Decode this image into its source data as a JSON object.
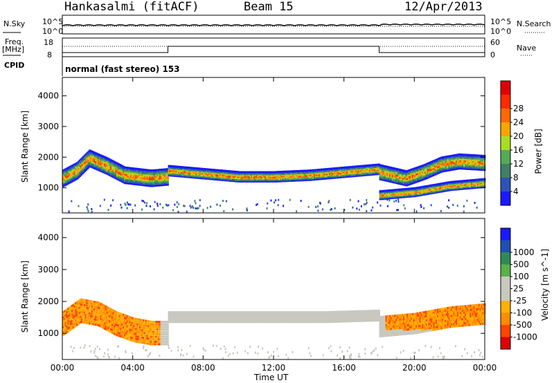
{
  "header": {
    "station": "Hankasalmi (fitACF)",
    "beam": "Beam 15",
    "date": "12/Apr/2013"
  },
  "nsky_panel": {
    "left_label": "N.Sky",
    "right_label": "N.Search",
    "right_line_style": "dotted",
    "left_ticks": [
      "10^5",
      "10^0"
    ],
    "right_ticks": [
      "10^5",
      "10^0"
    ]
  },
  "freq_panel": {
    "left_label_line1": "Freq.",
    "left_label_line2": "[MHz]",
    "right_label": "Nave",
    "right_line_style": "dotted",
    "left_ticks": [
      "18",
      "8"
    ],
    "right_ticks": [
      "60",
      "0"
    ]
  },
  "cpid_panel": {
    "left_label": "CPID",
    "text": "normal (fast stereo) 153"
  },
  "x_axis": {
    "label": "Time UT",
    "ticks": [
      "00:00",
      "04:00",
      "08:00",
      "12:00",
      "16:00",
      "20:00",
      "00:00"
    ]
  },
  "colors": {
    "power_scale": [
      "#1a1aff",
      "#2a55b8",
      "#3f7f6a",
      "#55aa55",
      "#aadd22",
      "#ffa500",
      "#ff6a00",
      "#ff2a00",
      "#e00000"
    ],
    "velocity_scale": [
      "#e00000",
      "#ff4500",
      "#ff8c00",
      "#ffb000",
      "#c8c8c0",
      "#c8c8c0",
      "#5ab04a",
      "#2e8b57",
      "#2050b0",
      "#1a1aff"
    ],
    "ground_scatter": "#c8c8c0"
  },
  "chart_data": [
    {
      "type": "heatmap",
      "name": "power",
      "ylabel": "Slant Range [km]",
      "xlabel": "",
      "yticks": [
        1000,
        2000,
        3000,
        4000
      ],
      "ylim": [
        180,
        4600
      ],
      "xlim_hours": [
        0,
        24
      ],
      "colorbar": {
        "label": "Power [dB]",
        "ticks": [
          4,
          8,
          12,
          16,
          20,
          24,
          28
        ],
        "range": [
          0,
          30
        ]
      },
      "echo_bands": [
        {
          "t": [
            0.0,
            0.8,
            1.5,
            2.5,
            3.5,
            5.0,
            6.0
          ],
          "r": [
            1300,
            1550,
            1950,
            1700,
            1400,
            1300,
            1350
          ],
          "width_km": 500
        },
        {
          "t": [
            6.0,
            8.0,
            10.0,
            12.0,
            14.0,
            16.0,
            18.0
          ],
          "r": [
            1550,
            1450,
            1350,
            1350,
            1400,
            1500,
            1600
          ],
          "width_km": 300
        },
        {
          "t": [
            18.0,
            19.0,
            20.0,
            21.0,
            22.0,
            23.0,
            24.0
          ],
          "r": [
            750,
            800,
            850,
            950,
            1050,
            1100,
            1150
          ],
          "width_km": 250
        },
        {
          "t": [
            18.0,
            19.5,
            20.5,
            21.5,
            22.5,
            24.0
          ],
          "r": [
            1500,
            1300,
            1500,
            1750,
            1850,
            1800
          ],
          "width_km": 450
        }
      ]
    },
    {
      "type": "heatmap",
      "name": "velocity",
      "ylabel": "Slant Range [km]",
      "xlabel": "Time UT",
      "yticks": [
        1000,
        2000,
        3000,
        4000
      ],
      "ylim": [
        180,
        4600
      ],
      "xlim_hours": [
        0,
        24
      ],
      "colorbar": {
        "label": "Velocity [m s^-1]",
        "ticks": [
          -1000,
          -500,
          -100,
          -25,
          25,
          100,
          500,
          1000
        ],
        "tick_labels": [
          "-1000",
          "-500",
          "-100",
          "-25",
          "25",
          "100",
          "500",
          "1000"
        ]
      },
      "echo_bands": [
        {
          "t": [
            0.0,
            1.0,
            2.0,
            3.0,
            4.0,
            5.0,
            6.0
          ],
          "r": [
            1300,
            1700,
            1600,
            1300,
            1100,
            1000,
            1000
          ],
          "width_km": 700
        },
        {
          "t": [
            6.0,
            9.0,
            12.0,
            15.0,
            18.0
          ],
          "r": [
            1500,
            1500,
            1500,
            1500,
            1550
          ],
          "width_km": 300
        },
        {
          "t": [
            18.0,
            20.0,
            22.0,
            24.0
          ],
          "r": [
            1200,
            1300,
            1500,
            1600
          ],
          "width_km": 600
        }
      ]
    }
  ]
}
